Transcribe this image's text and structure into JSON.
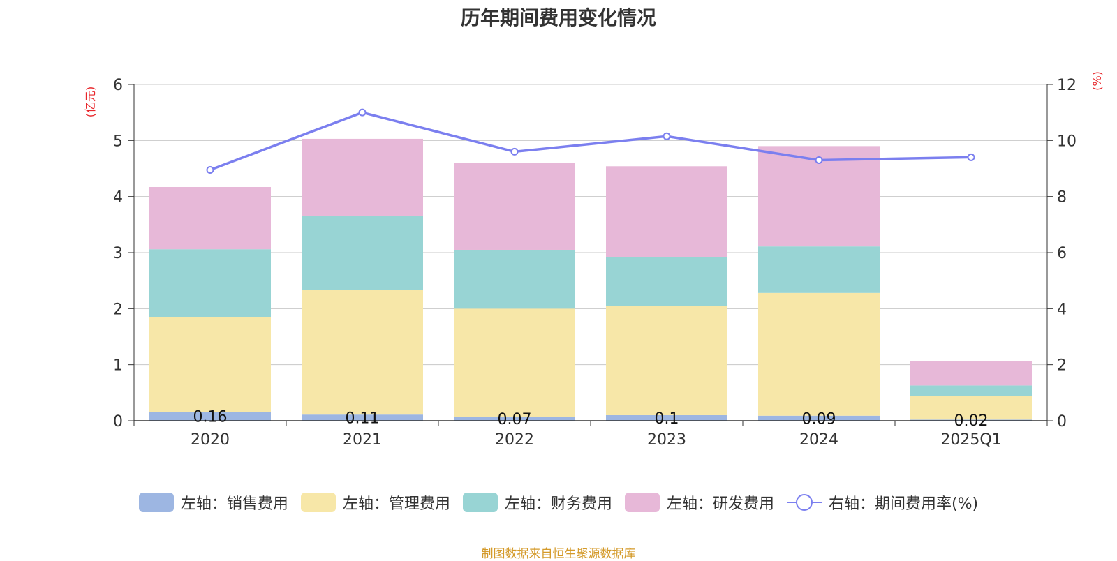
{
  "chart_data": {
    "type": "bar",
    "title": "历年期间费用变化情况",
    "categories": [
      "2020",
      "2021",
      "2022",
      "2023",
      "2024",
      "2025Q1"
    ],
    "y_left": {
      "label": "(亿元)",
      "ylim": [
        0,
        6
      ],
      "ticks": [
        0,
        1,
        2,
        3,
        4,
        5,
        6
      ]
    },
    "y_right": {
      "label": "(%)",
      "ylim": [
        0,
        12
      ],
      "ticks": [
        0,
        2,
        4,
        6,
        8,
        10,
        12
      ]
    },
    "grid": true,
    "legend_position": "bottom",
    "series": [
      {
        "name": "左轴：销售费用",
        "type": "bar",
        "stack": "total",
        "axis": "left",
        "color": "#9db6e2",
        "values": [
          0.16,
          0.11,
          0.07,
          0.1,
          0.09,
          0.02
        ],
        "data_labels": [
          "0.16",
          "0.11",
          "0.07",
          "0.1",
          "0.09",
          "0.02"
        ]
      },
      {
        "name": "左轴：管理费用",
        "type": "bar",
        "stack": "total",
        "axis": "left",
        "color": "#f7e7a8",
        "values": [
          1.69,
          2.23,
          1.93,
          1.95,
          2.19,
          0.42
        ]
      },
      {
        "name": "左轴：财务费用",
        "type": "bar",
        "stack": "total",
        "axis": "left",
        "color": "#98d4d4",
        "values": [
          1.21,
          1.32,
          1.05,
          0.87,
          0.83,
          0.19
        ]
      },
      {
        "name": "左轴：研发费用",
        "type": "bar",
        "stack": "total",
        "axis": "left",
        "color": "#e7b8d8",
        "values": [
          1.11,
          1.37,
          1.55,
          1.62,
          1.79,
          0.43
        ]
      },
      {
        "name": "右轴：期间费用率(%)",
        "type": "line",
        "axis": "right",
        "color": "#7b7fef",
        "values": [
          8.95,
          11.0,
          9.6,
          10.15,
          9.3,
          9.4
        ]
      }
    ]
  },
  "source_note": "制图数据来自恒生聚源数据库"
}
